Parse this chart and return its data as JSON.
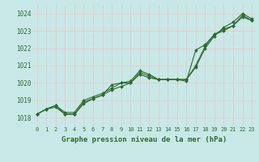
{
  "xlabel": "Graphe pression niveau de la mer (hPa)",
  "bg_color": "#c8e8e8",
  "grid_color": "#e8c8c8",
  "line_color": "#2d6a2d",
  "marker_color": "#2d6a2d",
  "xlim": [
    -0.5,
    23.5
  ],
  "ylim": [
    1017.5,
    1024.5
  ],
  "yticks": [
    1018,
    1019,
    1020,
    1021,
    1022,
    1023,
    1024
  ],
  "xticks": [
    0,
    1,
    2,
    3,
    4,
    5,
    6,
    7,
    8,
    9,
    10,
    11,
    12,
    13,
    14,
    15,
    16,
    17,
    18,
    19,
    20,
    21,
    22,
    23
  ],
  "series": [
    [
      1018.2,
      1018.5,
      1018.7,
      1018.2,
      1018.2,
      1018.9,
      1019.1,
      1019.3,
      1019.6,
      1019.8,
      1020.0,
      1020.6,
      1020.4,
      1020.2,
      1020.2,
      1020.2,
      1020.2,
      1021.0,
      1022.1,
      1022.8,
      1023.1,
      1023.3,
      1023.9,
      1023.6
    ],
    [
      1018.2,
      1018.5,
      1018.7,
      1018.3,
      1018.3,
      1019.0,
      1019.2,
      1019.4,
      1019.7,
      1020.0,
      1020.0,
      1020.5,
      1020.3,
      1020.2,
      1020.2,
      1020.2,
      1020.2,
      1020.9,
      1022.0,
      1022.7,
      1023.2,
      1023.5,
      1024.0,
      1023.7
    ],
    [
      1018.2,
      1018.5,
      1018.6,
      1018.2,
      1018.2,
      1018.8,
      1019.1,
      1019.3,
      1019.9,
      1020.0,
      1020.1,
      1020.7,
      1020.5,
      1020.2,
      1020.2,
      1020.2,
      1020.1,
      1021.9,
      1022.2,
      1022.8,
      1023.0,
      1023.3,
      1023.8,
      1023.6
    ]
  ]
}
